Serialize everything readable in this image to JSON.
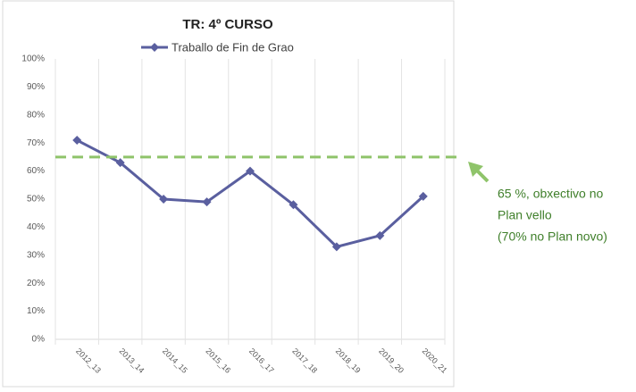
{
  "chart_data": {
    "type": "line",
    "title": "TR: 4º CURSO",
    "categories": [
      "2012_13",
      "2013_14",
      "2014_15",
      "2015_16",
      "2016_17",
      "2017_18",
      "2018_19",
      "2019_20",
      "2020_21"
    ],
    "series": [
      {
        "name": "Traballo de Fin de Grao",
        "color": "#5a5f9f",
        "values": [
          71,
          63,
          50,
          49,
          60,
          48,
          33,
          37,
          51
        ]
      }
    ],
    "ylim": [
      0,
      100
    ],
    "yticks": [
      {
        "value": 0,
        "label": "0%"
      },
      {
        "value": 10,
        "label": "10%"
      },
      {
        "value": 20,
        "label": "20%"
      },
      {
        "value": 30,
        "label": "30%"
      },
      {
        "value": 40,
        "label": "40%"
      },
      {
        "value": 50,
        "label": "50%"
      },
      {
        "value": 60,
        "label": "60%"
      },
      {
        "value": 70,
        "label": "70%"
      },
      {
        "value": 80,
        "label": "80%"
      },
      {
        "value": 90,
        "label": "90%"
      },
      {
        "value": 100,
        "label": "100%"
      }
    ],
    "threshold": {
      "value": 65,
      "color": "#8fc46a"
    },
    "annotation": [
      "65 %, obxectivo no",
      "Plan vello",
      "(70% no Plan novo)"
    ],
    "annotation_color": "#3f7f2a",
    "grid": "vertical"
  }
}
